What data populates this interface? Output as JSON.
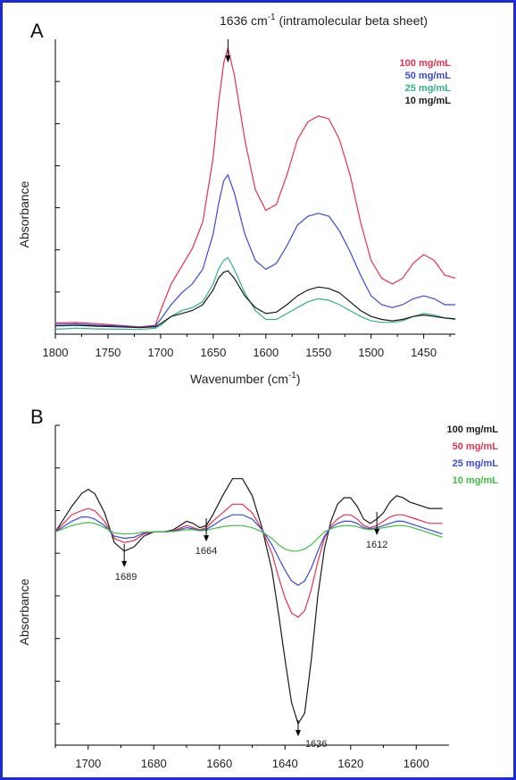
{
  "chart_data": [
    {
      "type": "line",
      "panel": "A",
      "title": "1636 cm-1 (intramolecular beta sheet)",
      "title_main": "1636 cm",
      "title_sup": "-1",
      "title_rest": " (intramolecular beta sheet)",
      "xlabel": "Wavenumber (cm-1)",
      "xlabel_main": "Wavenumber (cm",
      "xlabel_sup": "-1",
      "xlabel_rest": ")",
      "ylabel": "Absorbance",
      "xlim": [
        1800,
        1420
      ],
      "ylim": [
        0,
        1.0
      ],
      "xticks": [
        1800,
        1750,
        1700,
        1650,
        1600,
        1550,
        1500,
        1450
      ],
      "yticks": [
        0,
        0.143,
        0.286,
        0.429,
        0.571,
        0.714,
        0.857
      ],
      "legend_position": "top-right",
      "grid": false,
      "annotations": [
        {
          "x": 1636,
          "label": "arrow"
        }
      ],
      "series": [
        {
          "name": "100 mg/mL",
          "color": "#e8314f",
          "x": [
            1800,
            1780,
            1760,
            1740,
            1720,
            1705,
            1700,
            1690,
            1680,
            1670,
            1660,
            1650,
            1645,
            1640,
            1636,
            1630,
            1620,
            1610,
            1600,
            1590,
            1580,
            1570,
            1560,
            1550,
            1540,
            1530,
            1520,
            1510,
            1500,
            1490,
            1480,
            1470,
            1460,
            1450,
            1440,
            1430,
            1420
          ],
          "y": [
            0.038,
            0.04,
            0.035,
            0.03,
            0.025,
            0.03,
            0.08,
            0.17,
            0.23,
            0.29,
            0.38,
            0.6,
            0.78,
            0.92,
            0.97,
            0.88,
            0.66,
            0.49,
            0.42,
            0.44,
            0.54,
            0.66,
            0.72,
            0.74,
            0.73,
            0.66,
            0.54,
            0.38,
            0.25,
            0.19,
            0.17,
            0.19,
            0.24,
            0.27,
            0.25,
            0.2,
            0.19
          ]
        },
        {
          "name": "50 mg/mL",
          "color": "#3b48d8",
          "x": [
            1800,
            1780,
            1760,
            1740,
            1720,
            1705,
            1700,
            1690,
            1680,
            1670,
            1660,
            1650,
            1645,
            1640,
            1636,
            1630,
            1620,
            1610,
            1600,
            1590,
            1580,
            1570,
            1560,
            1550,
            1540,
            1530,
            1520,
            1510,
            1500,
            1490,
            1480,
            1470,
            1460,
            1450,
            1440,
            1430,
            1420
          ],
          "y": [
            0.033,
            0.035,
            0.03,
            0.028,
            0.023,
            0.028,
            0.05,
            0.1,
            0.14,
            0.17,
            0.22,
            0.34,
            0.44,
            0.52,
            0.54,
            0.48,
            0.34,
            0.25,
            0.22,
            0.24,
            0.3,
            0.37,
            0.4,
            0.41,
            0.4,
            0.35,
            0.28,
            0.2,
            0.13,
            0.1,
            0.09,
            0.1,
            0.12,
            0.13,
            0.12,
            0.1,
            0.1
          ]
        },
        {
          "name": "25 mg/mL",
          "color": "#2fb386",
          "x": [
            1800,
            1780,
            1760,
            1740,
            1720,
            1705,
            1700,
            1690,
            1680,
            1670,
            1660,
            1650,
            1645,
            1640,
            1636,
            1630,
            1620,
            1610,
            1600,
            1590,
            1580,
            1570,
            1560,
            1550,
            1540,
            1530,
            1520,
            1510,
            1500,
            1490,
            1480,
            1470,
            1460,
            1450,
            1440,
            1430,
            1420
          ],
          "y": [
            0.017,
            0.02,
            0.018,
            0.017,
            0.016,
            0.02,
            0.03,
            0.06,
            0.08,
            0.09,
            0.11,
            0.17,
            0.22,
            0.25,
            0.26,
            0.22,
            0.14,
            0.08,
            0.05,
            0.05,
            0.07,
            0.09,
            0.11,
            0.12,
            0.115,
            0.1,
            0.08,
            0.06,
            0.045,
            0.04,
            0.04,
            0.045,
            0.06,
            0.07,
            0.065,
            0.055,
            0.05
          ]
        },
        {
          "name": "10 mg/mL",
          "color": "#1a1a1a",
          "x": [
            1800,
            1780,
            1760,
            1740,
            1720,
            1705,
            1700,
            1690,
            1680,
            1670,
            1660,
            1650,
            1645,
            1640,
            1636,
            1630,
            1620,
            1610,
            1600,
            1590,
            1580,
            1570,
            1560,
            1550,
            1540,
            1530,
            1520,
            1510,
            1500,
            1490,
            1480,
            1470,
            1460,
            1450,
            1440,
            1430,
            1420
          ],
          "y": [
            0.028,
            0.03,
            0.027,
            0.025,
            0.022,
            0.025,
            0.035,
            0.06,
            0.07,
            0.08,
            0.1,
            0.15,
            0.19,
            0.21,
            0.215,
            0.19,
            0.13,
            0.09,
            0.07,
            0.075,
            0.1,
            0.13,
            0.15,
            0.16,
            0.155,
            0.14,
            0.11,
            0.08,
            0.06,
            0.05,
            0.045,
            0.05,
            0.06,
            0.065,
            0.06,
            0.055,
            0.052
          ]
        }
      ]
    },
    {
      "type": "line",
      "panel": "B",
      "ylabel": "Absorbance",
      "xlim": [
        1710,
        1590
      ],
      "ylim": [
        -1.0,
        0.5
      ],
      "xticks": [
        1700,
        1680,
        1660,
        1640,
        1620,
        1600
      ],
      "yticks": [
        0.5,
        0.3,
        0.1,
        -0.1,
        -0.3,
        -0.5,
        -0.7,
        -0.9
      ],
      "legend_position": "top-right",
      "grid": false,
      "annotations": [
        {
          "x": 1689,
          "label": "1689"
        },
        {
          "x": 1664,
          "label": "1664"
        },
        {
          "x": 1636,
          "label": "1636"
        },
        {
          "x": 1612,
          "label": "1612"
        }
      ],
      "series": [
        {
          "name": "100 mg/mL",
          "color": "#1a1a1a",
          "x": [
            1710,
            1705,
            1702,
            1700,
            1698,
            1695,
            1692,
            1689,
            1686,
            1683,
            1680,
            1677,
            1674,
            1670,
            1668,
            1666,
            1664,
            1662,
            1659,
            1656,
            1653,
            1650,
            1647,
            1644,
            1642,
            1640,
            1638,
            1636,
            1634,
            1632,
            1630,
            1628,
            1626,
            1624,
            1622,
            1620,
            1618,
            1616,
            1614,
            1612,
            1610,
            1608,
            1606,
            1604,
            1602,
            1600,
            1598,
            1596,
            1594,
            1592
          ],
          "y": [
            0.0,
            0.12,
            0.18,
            0.2,
            0.18,
            0.09,
            -0.05,
            -0.09,
            -0.07,
            -0.02,
            0.0,
            0.0,
            0.01,
            0.05,
            0.04,
            0.02,
            0.03,
            0.08,
            0.17,
            0.25,
            0.25,
            0.17,
            0.02,
            -0.18,
            -0.38,
            -0.6,
            -0.8,
            -0.9,
            -0.85,
            -0.6,
            -0.3,
            -0.08,
            0.05,
            0.13,
            0.16,
            0.16,
            0.12,
            0.06,
            0.04,
            0.06,
            0.09,
            0.14,
            0.17,
            0.16,
            0.14,
            0.13,
            0.12,
            0.11,
            0.11,
            0.11
          ]
        },
        {
          "name": "50 mg/mL",
          "color": "#e8314f",
          "x": [
            1710,
            1705,
            1702,
            1700,
            1698,
            1695,
            1692,
            1689,
            1686,
            1683,
            1680,
            1677,
            1674,
            1670,
            1668,
            1666,
            1664,
            1662,
            1659,
            1656,
            1653,
            1650,
            1647,
            1644,
            1642,
            1640,
            1638,
            1636,
            1634,
            1632,
            1630,
            1628,
            1626,
            1624,
            1622,
            1620,
            1618,
            1616,
            1614,
            1612,
            1610,
            1608,
            1606,
            1604,
            1602,
            1600,
            1598,
            1596,
            1594,
            1592
          ],
          "y": [
            0.0,
            0.08,
            0.1,
            0.11,
            0.1,
            0.05,
            -0.03,
            -0.05,
            -0.04,
            -0.01,
            0.0,
            0.0,
            0.005,
            0.03,
            0.02,
            0.01,
            0.02,
            0.05,
            0.09,
            0.13,
            0.13,
            0.09,
            0.01,
            -0.1,
            -0.21,
            -0.31,
            -0.38,
            -0.4,
            -0.37,
            -0.27,
            -0.14,
            -0.03,
            0.03,
            0.06,
            0.08,
            0.08,
            0.06,
            0.03,
            0.02,
            0.03,
            0.05,
            0.07,
            0.08,
            0.08,
            0.07,
            0.06,
            0.05,
            0.04,
            0.04,
            0.04
          ]
        },
        {
          "name": "25 mg/mL",
          "color": "#3b48d8",
          "x": [
            1710,
            1705,
            1702,
            1700,
            1698,
            1695,
            1692,
            1689,
            1686,
            1683,
            1680,
            1677,
            1674,
            1670,
            1668,
            1666,
            1664,
            1662,
            1659,
            1656,
            1653,
            1650,
            1647,
            1644,
            1642,
            1640,
            1638,
            1636,
            1634,
            1632,
            1630,
            1628,
            1626,
            1624,
            1622,
            1620,
            1618,
            1616,
            1614,
            1612,
            1610,
            1608,
            1606,
            1604,
            1602,
            1600,
            1598,
            1596,
            1594,
            1592
          ],
          "y": [
            0.0,
            0.05,
            0.07,
            0.07,
            0.06,
            0.03,
            -0.02,
            -0.03,
            -0.025,
            -0.005,
            0.0,
            0.0,
            0.003,
            0.02,
            0.015,
            0.008,
            0.012,
            0.03,
            0.06,
            0.08,
            0.08,
            0.06,
            0.01,
            -0.06,
            -0.12,
            -0.18,
            -0.23,
            -0.25,
            -0.23,
            -0.17,
            -0.09,
            -0.02,
            0.02,
            0.04,
            0.05,
            0.05,
            0.04,
            0.02,
            0.015,
            0.02,
            0.03,
            0.04,
            0.05,
            0.05,
            0.04,
            0.03,
            0.02,
            0.01,
            0.0,
            -0.01
          ]
        },
        {
          "name": "10 mg/mL",
          "color": "#3cbf3c",
          "x": [
            1710,
            1705,
            1702,
            1700,
            1698,
            1695,
            1692,
            1689,
            1686,
            1683,
            1680,
            1677,
            1674,
            1670,
            1668,
            1666,
            1664,
            1662,
            1659,
            1656,
            1653,
            1650,
            1647,
            1644,
            1642,
            1640,
            1638,
            1636,
            1634,
            1632,
            1630,
            1628,
            1626,
            1624,
            1622,
            1620,
            1618,
            1616,
            1614,
            1612,
            1610,
            1608,
            1606,
            1604,
            1602,
            1600,
            1598,
            1596,
            1594,
            1592
          ],
          "y": [
            0.0,
            0.03,
            0.04,
            0.045,
            0.04,
            0.02,
            -0.005,
            -0.01,
            -0.008,
            0.0,
            0.0,
            0.0,
            0.002,
            0.01,
            0.01,
            0.005,
            0.008,
            0.015,
            0.025,
            0.03,
            0.03,
            0.02,
            0.0,
            -0.03,
            -0.06,
            -0.08,
            -0.09,
            -0.09,
            -0.08,
            -0.06,
            -0.03,
            0.0,
            0.015,
            0.025,
            0.03,
            0.03,
            0.025,
            0.015,
            0.01,
            0.015,
            0.02,
            0.025,
            0.03,
            0.03,
            0.025,
            0.015,
            0.005,
            -0.005,
            -0.015,
            -0.025
          ]
        }
      ]
    }
  ]
}
